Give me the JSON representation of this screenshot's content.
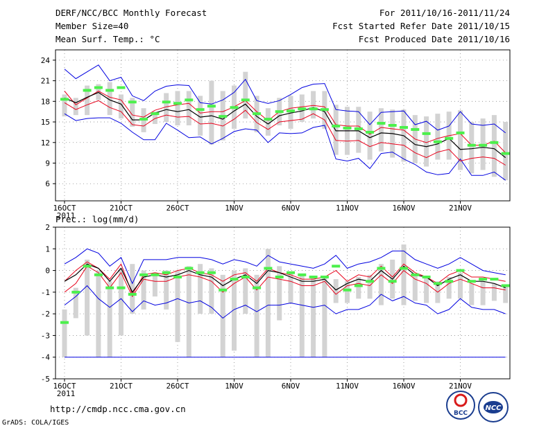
{
  "header": {
    "title": "DERF/NCC/BCC Monthly Forecast",
    "member_size": "Member Size=40",
    "variable": "Mean Surf. Temp.: °C",
    "period": "For 2011/10/16-2011/11/24",
    "fcst_started": "Fcst Started Refer Date 2011/10/15",
    "fcst_produced": "Fcst Produced Date 2011/10/16"
  },
  "footer": {
    "url": "http://cmdp.ncc.cma.gov.cn",
    "credit": "GrADS: COLA/IGES",
    "logo_bcc": "BCC",
    "logo_ncc": "NCC"
  },
  "colors": {
    "box": "#d3d3d3",
    "mean": "#000000",
    "spread": "#e8001a",
    "extreme": "#0000e0",
    "observed": "#4cf04c",
    "grid": "#888888"
  },
  "chart_data": [
    {
      "name": "temperature",
      "type": "line",
      "title": "Mean Surf. Temp.: °C",
      "ylabel": "°C",
      "ylim": [
        3.5,
        25.5
      ],
      "yticks": [
        6,
        9,
        12,
        15,
        18,
        21,
        24
      ],
      "x_tick_labels": [
        "16OCT",
        "21OCT",
        "26OCT",
        "1NOV",
        "6NOV",
        "11NOV",
        "16NOV",
        "21NOV"
      ],
      "x_tick_days": [
        1,
        6,
        11,
        16,
        21,
        26,
        31,
        36
      ],
      "year_label": "2011",
      "days": [
        1,
        2,
        3,
        4,
        5,
        6,
        7,
        8,
        9,
        10,
        11,
        12,
        13,
        14,
        15,
        16,
        17,
        18,
        19,
        20,
        21,
        22,
        23,
        24,
        25,
        26,
        27,
        28,
        29,
        30,
        31,
        32,
        33,
        34,
        35,
        36,
        37,
        38,
        39,
        40
      ],
      "series": [
        {
          "name": "max",
          "values": [
            22.7,
            21.3,
            22.3,
            23.3,
            21.0,
            21.5,
            18.8,
            18.1,
            19.5,
            20.2,
            20.4,
            20.3,
            17.8,
            17.6,
            18.2,
            19.3,
            21.2,
            18.1,
            17.7,
            18.1,
            19.0,
            20.0,
            20.5,
            20.6,
            16.8,
            16.6,
            16.5,
            14.6,
            16.4,
            16.5,
            16.6,
            14.6,
            15.1,
            13.8,
            14.4,
            16.5,
            14.7,
            14.5,
            14.7,
            13.4
          ]
        },
        {
          "name": "upper",
          "values": [
            19.5,
            17.5,
            18.5,
            19.5,
            18.6,
            18.2,
            16.0,
            15.7,
            16.7,
            17.2,
            17.5,
            17.7,
            16.3,
            16.5,
            16.5,
            17.2,
            18.1,
            16.5,
            15.2,
            16.5,
            17.0,
            17.2,
            17.4,
            17.2,
            14.6,
            14.4,
            14.4,
            13.2,
            14.2,
            14.0,
            13.8,
            12.5,
            12.0,
            12.6,
            13.0,
            13.3,
            11.6,
            11.6,
            12.2,
            10.5
          ]
        },
        {
          "name": "mean",
          "values": [
            18.5,
            17.8,
            18.6,
            19.3,
            18.2,
            17.6,
            15.3,
            15.3,
            16.3,
            16.8,
            16.5,
            16.8,
            15.7,
            15.9,
            15.4,
            16.6,
            17.6,
            15.8,
            14.7,
            15.9,
            16.3,
            16.6,
            17.1,
            16.5,
            13.7,
            13.7,
            13.7,
            12.7,
            13.4,
            13.3,
            13.0,
            11.7,
            11.4,
            11.8,
            12.6,
            11.0,
            11.1,
            11.3,
            11.1,
            9.8
          ]
        },
        {
          "name": "lower",
          "values": [
            17.8,
            16.8,
            17.5,
            18.1,
            17.1,
            16.5,
            14.6,
            14.4,
            15.5,
            16.0,
            15.7,
            15.8,
            14.7,
            14.8,
            14.4,
            15.4,
            16.7,
            14.9,
            13.9,
            15.0,
            15.2,
            15.4,
            16.2,
            15.3,
            12.3,
            12.2,
            12.3,
            11.4,
            12.0,
            11.8,
            11.6,
            10.5,
            9.8,
            10.6,
            11.0,
            9.3,
            9.7,
            9.9,
            9.7,
            8.7
          ]
        },
        {
          "name": "min",
          "values": [
            16.2,
            15.2,
            15.5,
            15.6,
            15.6,
            14.8,
            13.5,
            12.4,
            12.4,
            14.8,
            13.8,
            12.7,
            12.8,
            11.8,
            12.6,
            13.6,
            14.0,
            13.8,
            12.0,
            13.4,
            13.3,
            13.4,
            14.2,
            14.5,
            9.6,
            9.3,
            9.7,
            8.2,
            10.4,
            10.6,
            9.6,
            8.8,
            7.7,
            7.3,
            7.5,
            9.6,
            7.2,
            7.2,
            7.7,
            6.5
          ]
        },
        {
          "name": "box_top",
          "values": [
            19.0,
            18.5,
            20.3,
            20.5,
            20.8,
            19.0,
            18.5,
            17.0,
            16.5,
            19.2,
            19.5,
            19.5,
            18.8,
            21.0,
            19.5,
            20.3,
            22.3,
            18.8,
            17.0,
            18.5,
            18.8,
            19.0,
            19.5,
            19.5,
            17.5,
            17.2,
            17.2,
            16.5,
            17.0,
            16.8,
            16.8,
            16.0,
            15.8,
            16.2,
            16.5,
            16.7,
            15.0,
            15.5,
            16.0,
            15.0
          ]
        },
        {
          "name": "box_bottom",
          "values": [
            15.8,
            16.0,
            16.0,
            18.2,
            16.0,
            15.5,
            14.3,
            13.5,
            14.7,
            15.0,
            14.5,
            14.5,
            13.0,
            11.7,
            12.3,
            14.0,
            15.5,
            13.5,
            13.0,
            14.5,
            14.0,
            15.0,
            15.5,
            14.0,
            10.2,
            10.2,
            10.5,
            9.5,
            10.7,
            9.8,
            9.2,
            9.0,
            8.5,
            9.5,
            9.5,
            8.0,
            7.5,
            8.0,
            7.0,
            6.5
          ]
        },
        {
          "name": "observed",
          "values": [
            18.3,
            null,
            19.6,
            20.0,
            19.6,
            20.0,
            17.9,
            15.4,
            16.2,
            17.9,
            17.7,
            18.2,
            16.8,
            17.3,
            15.8,
            17.1,
            18.2,
            16.2,
            15.4,
            16.5,
            16.6,
            16.9,
            16.9,
            16.8,
            14.4,
            14.1,
            14.0,
            13.5,
            14.8,
            14.5,
            14.2,
            13.9,
            13.3,
            12.1,
            12.6,
            13.4,
            11.6,
            11.6,
            12.0,
            10.4
          ]
        }
      ]
    },
    {
      "name": "precipitation",
      "type": "line",
      "title": "Prec.: log(mm/d)",
      "ylabel": "log(mm/d)",
      "ylim": [
        -5,
        2
      ],
      "yticks": [
        -5,
        -4,
        -3,
        -2,
        -1,
        0,
        1,
        2
      ],
      "x_tick_labels": [
        "16OCT",
        "21OCT",
        "26OCT",
        "1NOV",
        "6NOV",
        "11NOV",
        "16NOV",
        "21NOV"
      ],
      "x_tick_days": [
        1,
        6,
        11,
        16,
        21,
        26,
        31,
        36
      ],
      "year_label": "2011",
      "days": [
        1,
        2,
        3,
        4,
        5,
        6,
        7,
        8,
        9,
        10,
        11,
        12,
        13,
        14,
        15,
        16,
        17,
        18,
        19,
        20,
        21,
        22,
        23,
        24,
        25,
        26,
        27,
        28,
        29,
        30,
        31,
        32,
        33,
        34,
        35,
        36,
        37,
        38,
        39,
        40
      ],
      "series": [
        {
          "name": "max",
          "values": [
            0.3,
            0.6,
            1.0,
            0.8,
            0.2,
            0.6,
            -0.6,
            0.5,
            0.5,
            0.5,
            0.6,
            0.6,
            0.6,
            0.5,
            0.3,
            0.5,
            0.4,
            0.2,
            0.7,
            0.4,
            0.3,
            0.2,
            0.1,
            0.3,
            0.7,
            0.1,
            0.3,
            0.4,
            0.6,
            0.9,
            0.9,
            0.5,
            0.3,
            0.1,
            0.3,
            0.6,
            0.3,
            0.0,
            -0.1,
            -0.2
          ]
        },
        {
          "name": "upper",
          "values": [
            -0.5,
            0.0,
            0.4,
            0.1,
            -0.4,
            0.3,
            -1.1,
            -0.2,
            -0.1,
            -0.2,
            0.0,
            0.1,
            -0.1,
            -0.2,
            -0.5,
            -0.2,
            -0.1,
            -0.5,
            0.1,
            -0.1,
            -0.2,
            -0.4,
            -0.4,
            -0.3,
            0.0,
            -0.5,
            -0.2,
            -0.3,
            0.2,
            -0.3,
            0.3,
            -0.1,
            -0.3,
            -0.6,
            -0.2,
            0.0,
            -0.3,
            -0.3,
            -0.4,
            -0.5
          ]
        },
        {
          "name": "mean",
          "values": [
            -0.5,
            -0.2,
            0.3,
            0.1,
            -0.5,
            0.1,
            -1.0,
            -0.3,
            -0.2,
            -0.3,
            -0.2,
            0.0,
            -0.2,
            -0.3,
            -0.7,
            -0.4,
            -0.2,
            -0.6,
            0.0,
            -0.1,
            -0.3,
            -0.5,
            -0.5,
            -0.4,
            -0.9,
            -0.6,
            -0.4,
            -0.5,
            0.0,
            -0.4,
            0.2,
            -0.2,
            -0.3,
            -0.7,
            -0.4,
            -0.2,
            -0.5,
            -0.5,
            -0.6,
            -0.8
          ]
        },
        {
          "name": "lower",
          "values": [
            -1.0,
            -0.6,
            0.2,
            -0.1,
            -0.8,
            -0.1,
            -1.2,
            -0.4,
            -0.5,
            -0.5,
            -0.3,
            -0.2,
            -0.3,
            -0.5,
            -1.0,
            -0.6,
            -0.3,
            -0.9,
            -0.3,
            -0.4,
            -0.5,
            -0.7,
            -0.7,
            -0.5,
            -1.1,
            -0.7,
            -0.6,
            -0.7,
            -0.2,
            -0.6,
            0.0,
            -0.4,
            -0.6,
            -1.0,
            -0.6,
            -0.4,
            -0.6,
            -0.8,
            -0.8,
            -0.9
          ]
        },
        {
          "name": "min",
          "values": [
            -1.6,
            -1.2,
            -0.7,
            -1.3,
            -1.7,
            -1.3,
            -1.9,
            -1.4,
            -1.6,
            -1.5,
            -1.3,
            -1.5,
            -1.4,
            -1.7,
            -2.2,
            -1.8,
            -1.6,
            -1.9,
            -1.6,
            -1.6,
            -1.5,
            -1.6,
            -1.7,
            -1.6,
            -2.0,
            -1.8,
            -1.8,
            -1.6,
            -1.1,
            -1.4,
            -1.2,
            -1.5,
            -1.6,
            -2.0,
            -1.8,
            -1.3,
            -1.7,
            -1.8,
            -1.8,
            -2.0
          ]
        },
        {
          "name": "box_top",
          "values": [
            -1.8,
            -0.8,
            0.5,
            0.0,
            -0.5,
            0.1,
            0.3,
            0.0,
            -0.1,
            0.0,
            0.0,
            0.2,
            0.3,
            0.1,
            -0.2,
            0.0,
            0.1,
            -0.2,
            1.0,
            0.2,
            -0.1,
            -0.2,
            -0.3,
            -0.3,
            -0.4,
            -0.5,
            -0.3,
            -0.2,
            0.3,
            0.5,
            1.2,
            -0.2,
            -0.3,
            -0.5,
            -0.3,
            -0.1,
            -0.6,
            -0.5,
            -0.6,
            -0.7
          ]
        },
        {
          "name": "box_bottom",
          "values": [
            -4.0,
            -2.2,
            -3.0,
            -4.0,
            -4.0,
            -3.0,
            -2.0,
            -1.8,
            -1.2,
            -1.8,
            -3.3,
            -4.0,
            -2.0,
            -2.0,
            -4.0,
            -3.7,
            -2.0,
            -4.0,
            -4.0,
            -2.3,
            -1.5,
            -4.0,
            -4.0,
            -4.0,
            -1.5,
            -1.5,
            -1.3,
            -1.3,
            -1.6,
            -1.3,
            -1.6,
            -1.4,
            -1.5,
            -1.5,
            -1.3,
            -1.3,
            -1.6,
            -1.6,
            -1.4,
            -1.5
          ]
        },
        {
          "name": "observed",
          "values": [
            -2.4,
            -1.0,
            0.2,
            -0.2,
            -0.8,
            -0.8,
            -1.1,
            -0.2,
            -0.2,
            -0.1,
            -0.3,
            0.1,
            -0.1,
            -0.1,
            -0.9,
            -0.4,
            -0.3,
            -0.8,
            0.1,
            -0.3,
            -0.1,
            -0.2,
            -0.3,
            -0.3,
            0.2,
            -0.9,
            -0.7,
            -0.5,
            0.1,
            -0.5,
            0.1,
            -0.2,
            -0.3,
            -0.6,
            -0.5,
            0.0,
            -0.5,
            -0.4,
            -0.4,
            -0.7
          ]
        }
      ]
    }
  ]
}
